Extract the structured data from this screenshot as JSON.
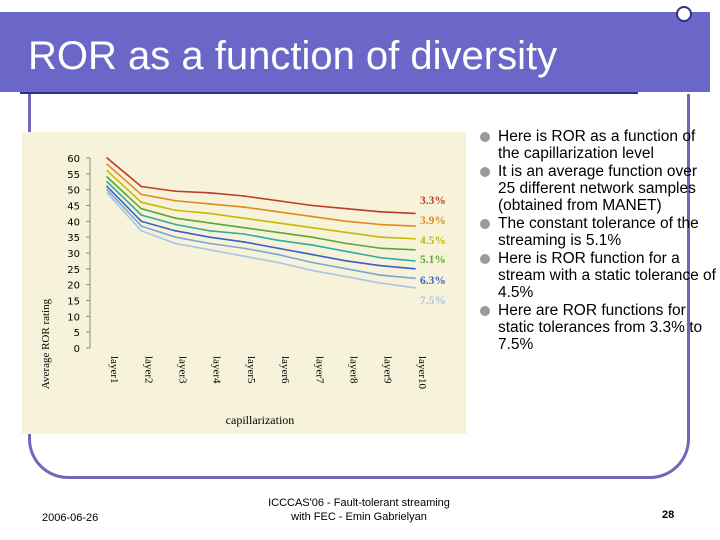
{
  "slide": {
    "title": "ROR as a function of diversity",
    "bullets": [
      "Here is ROR as a function of the capillarization level",
      "It is an average function over 25 different network samples (obtained from MANET)",
      "The constant tolerance of the streaming is 5.1%",
      "Here is ROR function for a stream with a static tolerance of 4.5%",
      "Here are ROR functions for static tolerances from 3.3% to 7.5%"
    ],
    "footer": {
      "date": "2006-06-26",
      "center_line1": "ICCCAS'06 - Fault-tolerant streaming",
      "center_line2": "with FEC - Emin Gabrielyan",
      "page": "28"
    }
  },
  "chart_data": {
    "type": "line",
    "xlabel": "capillarization",
    "ylabel": "Average ROR rating",
    "ylim": [
      0,
      60
    ],
    "yticks": [
      0,
      5,
      10,
      15,
      20,
      25,
      30,
      35,
      40,
      45,
      50,
      55,
      60
    ],
    "categories": [
      "layer1",
      "layer2",
      "layer3",
      "layer4",
      "layer5",
      "layer6",
      "layer7",
      "layer8",
      "layer9",
      "layer10"
    ],
    "series": [
      {
        "name": "3.3%",
        "color": "#c0392b",
        "values": [
          60,
          51,
          49.5,
          49,
          48,
          46.5,
          45,
          44,
          43,
          42.5
        ]
      },
      {
        "name": "3.9%",
        "color": "#e08a1e",
        "values": [
          58,
          48.5,
          46.5,
          45.5,
          44.5,
          43,
          41.5,
          40,
          39,
          38.5
        ]
      },
      {
        "name": "4.5%",
        "color": "#c9b800",
        "values": [
          56,
          46,
          43.5,
          42.5,
          41,
          39.5,
          38,
          36.5,
          35,
          34.5
        ]
      },
      {
        "name": "5.1%",
        "color": "#5aa832",
        "values": [
          54,
          44,
          41,
          39.5,
          38,
          36.5,
          35,
          33,
          31.5,
          31
        ]
      },
      {
        "name": "",
        "color": "#2fae9a",
        "values": [
          52.5,
          42,
          39,
          37,
          36,
          34,
          32.5,
          30.5,
          28.5,
          27.5
        ]
      },
      {
        "name": "6.3%",
        "color": "#3a5fc8",
        "values": [
          51,
          40,
          37,
          35,
          33.5,
          31.5,
          29.5,
          27.5,
          26,
          25
        ]
      },
      {
        "name": "",
        "color": "#7aa6d6",
        "values": [
          50,
          38.5,
          35,
          33,
          31.5,
          29.5,
          27,
          25,
          23,
          22
        ]
      },
      {
        "name": "7.5%",
        "color": "#a8c4e8",
        "values": [
          49,
          37,
          33,
          31,
          29,
          27,
          24.5,
          22.5,
          20.5,
          19
        ]
      }
    ]
  }
}
